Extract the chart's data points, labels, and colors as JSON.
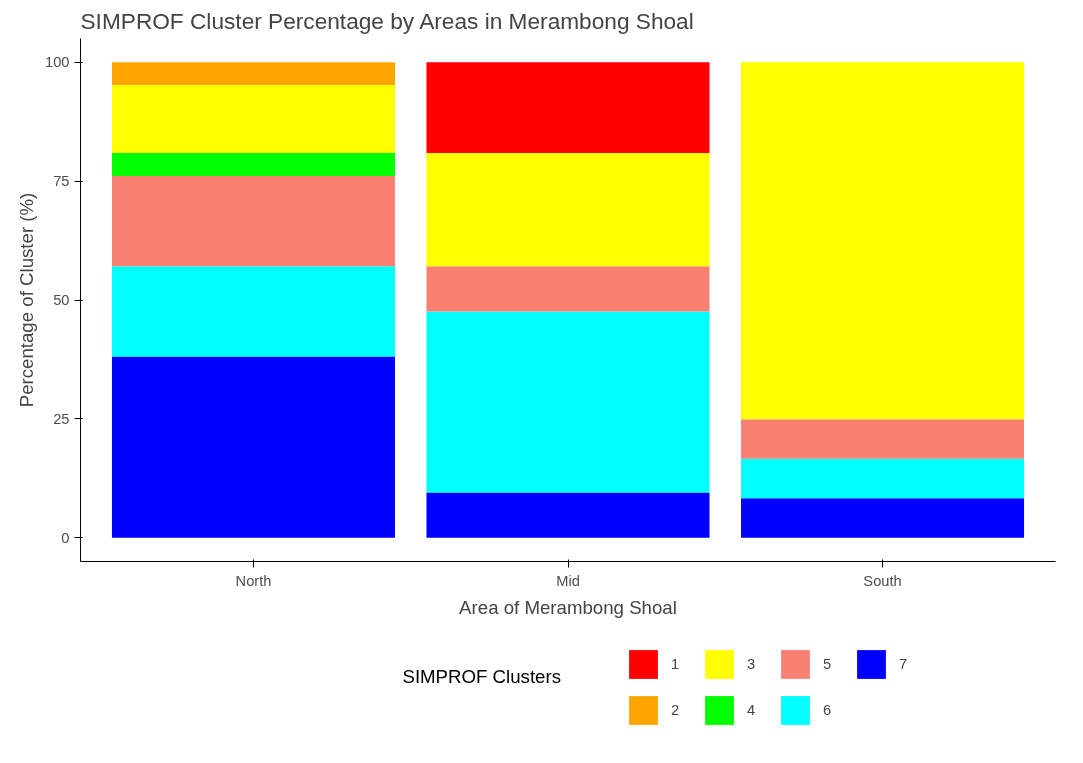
{
  "chart_data": {
    "type": "bar",
    "stacked": true,
    "title": "SIMPROF Cluster Percentage by Areas in Merambong Shoal",
    "xlabel": "Area of Merambong Shoal",
    "ylabel": "Percentage of Cluster (%)",
    "legend_title": "SIMPROF Clusters",
    "categories": [
      "North",
      "Mid",
      "South"
    ],
    "ylim": [
      -5,
      105
    ],
    "yticks": [
      0,
      25,
      50,
      75,
      100
    ],
    "grid": false,
    "legend": "bottom",
    "series": [
      {
        "name": "7",
        "color": "#0000ff",
        "values": [
          38.1,
          9.5,
          8.3
        ]
      },
      {
        "name": "6",
        "color": "#00ffff",
        "values": [
          19.0,
          38.1,
          8.3
        ]
      },
      {
        "name": "5",
        "color": "#fa8072",
        "values": [
          19.0,
          9.5,
          8.3
        ]
      },
      {
        "name": "4",
        "color": "#00ff00",
        "values": [
          4.8,
          null,
          null
        ]
      },
      {
        "name": "3",
        "color": "#ffff00",
        "values": [
          14.3,
          23.8,
          75.1
        ]
      },
      {
        "name": "2",
        "color": "#ffa500",
        "values": [
          4.8,
          null,
          null
        ]
      },
      {
        "name": "1",
        "color": "#ff0000",
        "values": [
          null,
          19.1,
          null
        ]
      }
    ]
  }
}
